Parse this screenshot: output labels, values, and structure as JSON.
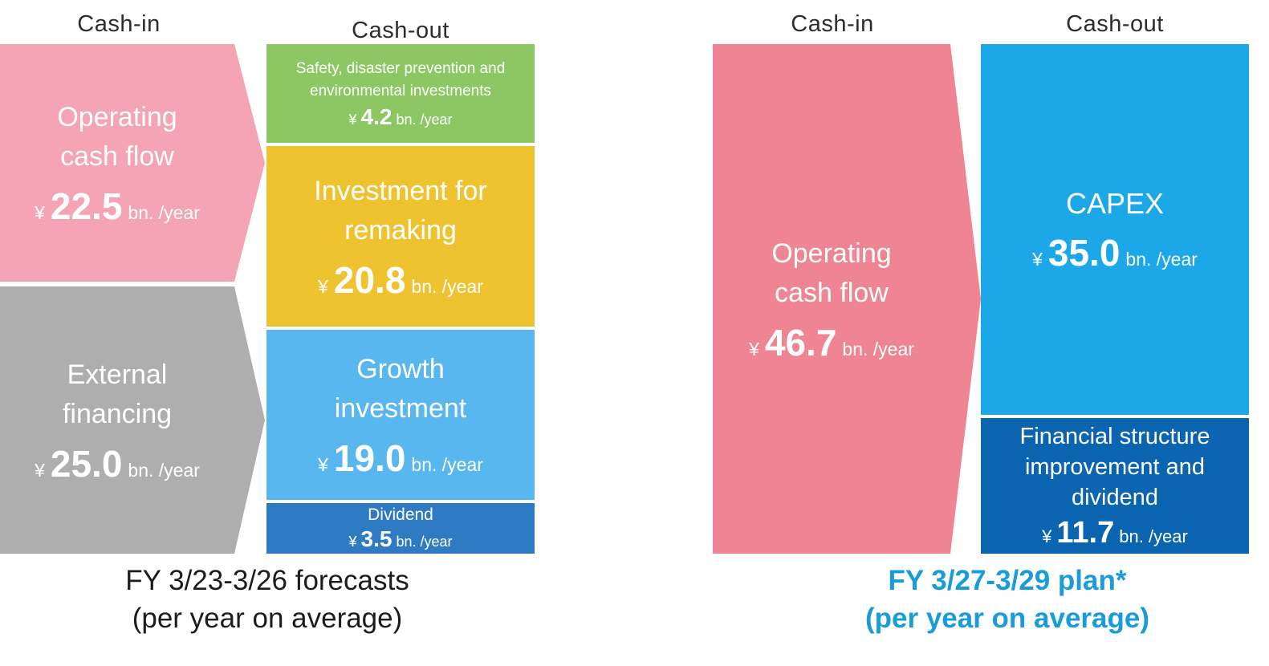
{
  "chart_data": {
    "type": "flow",
    "title": "Cash-in / Cash-out allocation",
    "unit": "¥ bn. /year",
    "panels": [
      {
        "period": "FY 3/23-3/26 forecasts (per year on average)",
        "cash_in": [
          {
            "label": "Operating cash flow",
            "value": 22.5
          },
          {
            "label": "External financing",
            "value": 25.0
          }
        ],
        "cash_out": [
          {
            "label": "Safety, disaster prevention and environmental investments",
            "value": 4.2
          },
          {
            "label": "Investment for remaking",
            "value": 20.8
          },
          {
            "label": "Growth investment",
            "value": 19.0
          },
          {
            "label": "Dividend",
            "value": 3.5
          }
        ]
      },
      {
        "period": "FY 3/27-3/29 plan* (per year on average)",
        "cash_in": [
          {
            "label": "Operating cash flow",
            "value": 46.7
          }
        ],
        "cash_out": [
          {
            "label": "CAPEX",
            "value": 35.0
          },
          {
            "label": "Financial structure improvement and dividend",
            "value": 11.7
          }
        ]
      }
    ]
  },
  "colors": {
    "operating_pink_forecast": "#F4A4B2",
    "operating_pink_plan": "#EF8593",
    "external_gray": "#AEAEAE",
    "safety_green": "#8CC763",
    "remaking_yellow": "#EFC230",
    "growth_blue": "#58B7EE",
    "dividend_blue": "#2F7BC3",
    "capex_blue": "#1BA7E8",
    "financial_dark_blue": "#0A64B0",
    "caption_blue": "#199CD8"
  },
  "left": {
    "cash_in_label": "Cash-in",
    "cash_out_label": "Cash-out",
    "operating": {
      "title_line1": "Operating",
      "title_line2": "cash flow",
      "yen": "¥",
      "value": "22.5",
      "unit": "bn. /year"
    },
    "external": {
      "title_line1": "External",
      "title_line2": "financing",
      "yen": "¥",
      "value": "25.0",
      "unit": "bn. /year"
    },
    "safety": {
      "title": "Safety, disaster prevention and environmental investments",
      "yen": "¥",
      "value": "4.2",
      "unit": "bn. /year"
    },
    "remaking": {
      "title_line1": "Investment for",
      "title_line2": "remaking",
      "yen": "¥",
      "value": "20.8",
      "unit": "bn. /year"
    },
    "growth": {
      "title_line1": "Growth",
      "title_line2": "investment",
      "yen": "¥",
      "value": "19.0",
      "unit": "bn. /year"
    },
    "dividend": {
      "title": "Dividend",
      "yen": "¥",
      "value": "3.5",
      "unit": "bn. /year"
    },
    "caption_line1": "FY 3/23-3/26 forecasts",
    "caption_line2": "(per year on average)"
  },
  "right": {
    "cash_in_label": "Cash-in",
    "cash_out_label": "Cash-out",
    "operating": {
      "title_line1": "Operating",
      "title_line2": "cash flow",
      "yen": "¥",
      "value": "46.7",
      "unit": "bn. /year"
    },
    "capex": {
      "title": "CAPEX",
      "yen": "¥",
      "value": "35.0",
      "unit": "bn. /year"
    },
    "financial": {
      "title": "Financial structure improvement and dividend",
      "yen": "¥",
      "value": "11.7",
      "unit": "bn. /year"
    },
    "caption_line1": "FY 3/27-3/29 plan*",
    "caption_line2": "(per year on average)"
  }
}
